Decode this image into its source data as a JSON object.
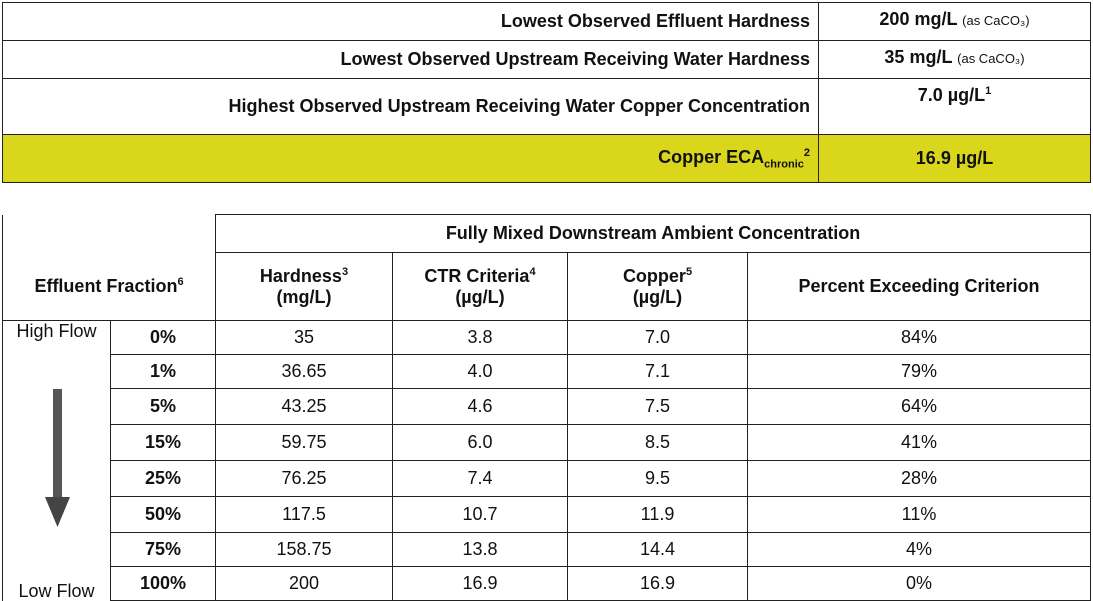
{
  "summary": [
    {
      "label": "Lowest Observed Effluent Hardness",
      "value": "200 mg/L",
      "unit_note": "(as CaCO₃)"
    },
    {
      "label": "Lowest Observed Upstream Receiving Water Hardness",
      "value": "35 mg/L",
      "unit_note": "(as CaCO₃)"
    },
    {
      "label": "Highest Observed Upstream Receiving Water Copper Concentration",
      "value": "7.0 µg/L",
      "value_note": "1"
    },
    {
      "label": "Copper ECA",
      "label_sub": "chronic",
      "label_note": "2",
      "value": "16.9 µg/L"
    }
  ],
  "table": {
    "group_header": "Fully Mixed Downstream Ambient Concentration",
    "first_header": {
      "name": "Effluent Fraction",
      "note": "6"
    },
    "columns": [
      {
        "name": "Hardness",
        "note": "3",
        "unit": "(mg/L)"
      },
      {
        "name": "CTR Criteria",
        "note": "4",
        "unit": "(µg/L)"
      },
      {
        "name": "Copper",
        "note": "5",
        "unit": "(µg/L)"
      },
      {
        "name": "Percent Exceeding Criterion"
      }
    ],
    "flow_high": "High Flow",
    "flow_low": "Low Flow",
    "rows": [
      [
        "0%",
        "35",
        "3.8",
        "7.0",
        "84%"
      ],
      [
        "1%",
        "36.65",
        "4.0",
        "7.1",
        "79%"
      ],
      [
        "5%",
        "43.25",
        "4.6",
        "7.5",
        "64%"
      ],
      [
        "15%",
        "59.75",
        "6.0",
        "8.5",
        "41%"
      ],
      [
        "25%",
        "76.25",
        "7.4",
        "9.5",
        "28%"
      ],
      [
        "50%",
        "117.5",
        "10.7",
        "11.9",
        "11%"
      ],
      [
        "75%",
        "158.75",
        "13.8",
        "14.4",
        "4%"
      ],
      [
        "100%",
        "200",
        "16.9",
        "16.9",
        "0%"
      ]
    ]
  }
}
